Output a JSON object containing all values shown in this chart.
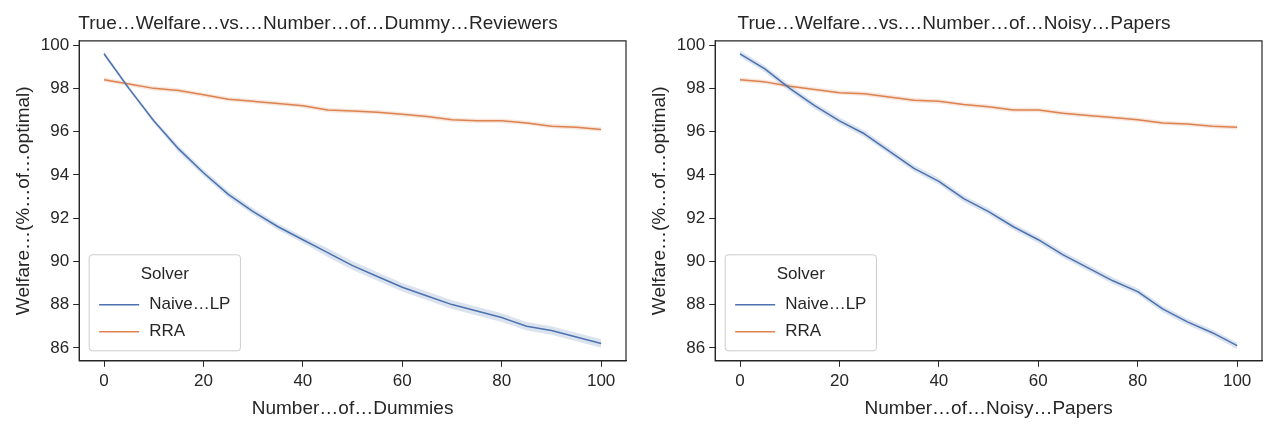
{
  "chart_data": [
    {
      "type": "line",
      "title": "True…Welfare…vs.…Number…of…Dummy…Reviewers",
      "xlabel": "Number…of…Dummies",
      "ylabel": "Welfare…(%…of…optimal)",
      "legend_title": "Solver",
      "legend": "bottom left",
      "grid": false,
      "marker": "none",
      "line_style": "solid",
      "x": [
        0,
        5,
        10,
        15,
        20,
        25,
        30,
        35,
        40,
        45,
        50,
        55,
        60,
        65,
        70,
        75,
        80,
        85,
        90,
        95,
        100
      ],
      "xlim": [
        -5,
        105
      ],
      "xticks": [
        0,
        20,
        40,
        60,
        80,
        100
      ],
      "ylim": [
        85.4,
        100.2
      ],
      "yticks": [
        86,
        88,
        90,
        92,
        94,
        96,
        98,
        100
      ],
      "series": [
        {
          "name": "Naive…LP",
          "color": "#4c72b0",
          "values": [
            99.6,
            98.0,
            96.5,
            95.2,
            94.1,
            93.1,
            92.3,
            91.6,
            91.0,
            90.4,
            89.8,
            89.3,
            88.8,
            88.4,
            88.0,
            87.7,
            87.4,
            87.0,
            86.8,
            86.5,
            86.2
          ],
          "lower": [
            99.5,
            97.9,
            96.4,
            95.05,
            93.95,
            92.95,
            92.15,
            91.45,
            90.85,
            90.2,
            89.6,
            89.1,
            88.6,
            88.2,
            87.8,
            87.5,
            87.2,
            86.8,
            86.6,
            86.3,
            86.0
          ],
          "upper": [
            99.7,
            98.1,
            96.6,
            95.35,
            94.25,
            93.25,
            92.45,
            91.75,
            91.15,
            90.6,
            90.0,
            89.5,
            89.0,
            88.6,
            88.2,
            87.9,
            87.6,
            87.2,
            87.0,
            86.7,
            86.4
          ]
        },
        {
          "name": "RRA",
          "color": "#dd8452",
          "values": [
            98.4,
            98.2,
            98.0,
            97.9,
            97.7,
            97.5,
            97.4,
            97.3,
            97.2,
            97.0,
            96.95,
            96.9,
            96.8,
            96.7,
            96.55,
            96.5,
            96.5,
            96.4,
            96.25,
            96.2,
            96.1
          ],
          "lower": [
            98.3,
            98.1,
            97.9,
            97.8,
            97.6,
            97.4,
            97.3,
            97.2,
            97.1,
            96.9,
            96.85,
            96.8,
            96.7,
            96.6,
            96.45,
            96.4,
            96.4,
            96.3,
            96.15,
            96.1,
            96.0
          ],
          "upper": [
            98.5,
            98.3,
            98.1,
            98.0,
            97.8,
            97.6,
            97.5,
            97.4,
            97.3,
            97.1,
            97.05,
            97.0,
            96.9,
            96.8,
            96.65,
            96.6,
            96.6,
            96.5,
            96.35,
            96.3,
            96.2
          ]
        }
      ]
    },
    {
      "type": "line",
      "title": "True…Welfare…vs.…Number…of…Noisy…Papers",
      "xlabel": "Number…of…Noisy…Papers",
      "ylabel": "Welfare…(%…of…optimal)",
      "legend_title": "Solver",
      "legend": "bottom left",
      "grid": false,
      "marker": "none",
      "line_style": "solid",
      "x": [
        0,
        5,
        10,
        15,
        20,
        25,
        30,
        35,
        40,
        45,
        50,
        55,
        60,
        65,
        70,
        75,
        80,
        85,
        90,
        95,
        100
      ],
      "xlim": [
        -5,
        105
      ],
      "xticks": [
        0,
        20,
        40,
        60,
        80,
        100
      ],
      "ylim": [
        85.4,
        100.2
      ],
      "yticks": [
        86,
        88,
        90,
        92,
        94,
        96,
        98,
        100
      ],
      "series": [
        {
          "name": "Naive…LP",
          "color": "#4c72b0",
          "values": [
            99.6,
            98.9,
            98.0,
            97.2,
            96.5,
            95.9,
            95.1,
            94.3,
            93.7,
            92.9,
            92.3,
            91.6,
            91.0,
            90.3,
            89.7,
            89.1,
            88.6,
            87.8,
            87.2,
            86.7,
            86.1
          ],
          "lower": [
            99.45,
            98.75,
            97.85,
            97.05,
            96.35,
            95.75,
            94.95,
            94.15,
            93.55,
            92.75,
            92.15,
            91.45,
            90.85,
            90.15,
            89.55,
            88.95,
            88.45,
            87.65,
            87.05,
            86.55,
            85.95
          ],
          "upper": [
            99.75,
            99.05,
            98.15,
            97.35,
            96.65,
            96.05,
            95.25,
            94.45,
            93.85,
            93.05,
            92.45,
            91.75,
            91.15,
            90.45,
            89.85,
            89.25,
            88.75,
            87.95,
            87.35,
            86.85,
            86.25
          ]
        },
        {
          "name": "RRA",
          "color": "#dd8452",
          "values": [
            98.4,
            98.3,
            98.1,
            97.95,
            97.8,
            97.75,
            97.6,
            97.45,
            97.4,
            97.25,
            97.15,
            97.0,
            97.0,
            96.85,
            96.75,
            96.65,
            96.55,
            96.4,
            96.35,
            96.25,
            96.2
          ],
          "lower": [
            98.3,
            98.2,
            98.0,
            97.85,
            97.7,
            97.65,
            97.5,
            97.35,
            97.3,
            97.15,
            97.05,
            96.9,
            96.9,
            96.75,
            96.65,
            96.55,
            96.45,
            96.3,
            96.25,
            96.15,
            96.1
          ],
          "upper": [
            98.5,
            98.4,
            98.2,
            98.05,
            97.9,
            97.85,
            97.7,
            97.55,
            97.5,
            97.35,
            97.25,
            97.1,
            97.1,
            96.95,
            96.85,
            96.75,
            96.65,
            96.5,
            96.45,
            96.35,
            96.3
          ]
        }
      ]
    }
  ]
}
